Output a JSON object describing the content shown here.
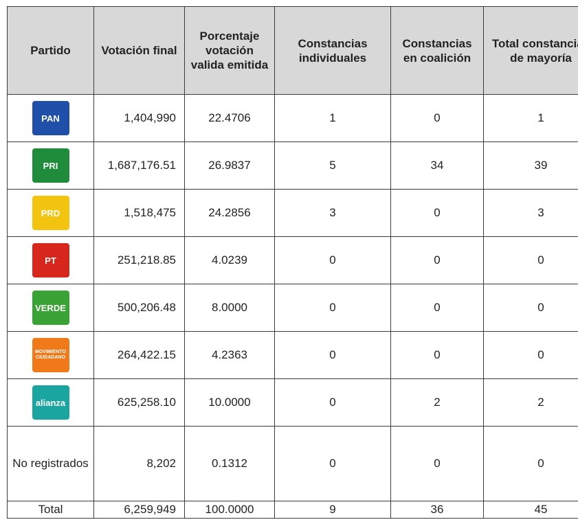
{
  "table": {
    "header": [
      "Partido",
      "Votación final",
      "Porcentaje votación valida emitida",
      "Constancias individuales",
      "Constancias en coalición",
      "Total constancias de mayoría"
    ],
    "rows": [
      {
        "logo": "PAN",
        "color": "#1f4fa8",
        "cells": [
          "1,404,990",
          "22.4706",
          "1",
          "0",
          "1"
        ]
      },
      {
        "logo": "PRI",
        "color": "#1e8c3a",
        "cells": [
          "1,687,176.51",
          "26.9837",
          "5",
          "34",
          "39"
        ]
      },
      {
        "logo": "PRD",
        "color": "#f2c40f",
        "cells": [
          "1,518,475",
          "24.2856",
          "3",
          "0",
          "3"
        ]
      },
      {
        "logo": "PT",
        "color": "#d7261c",
        "cells": [
          "251,218.85",
          "4.0239",
          "0",
          "0",
          "0"
        ]
      },
      {
        "logo": "VERDE",
        "color": "#3aa335",
        "cells": [
          "500,206.48",
          "8.0000",
          "0",
          "0",
          "0"
        ]
      },
      {
        "logo": "MOVIMIENTO CIUDADANO",
        "color": "#f07a1a",
        "cells": [
          "264,422.15",
          "4.2363",
          "0",
          "0",
          "0"
        ]
      },
      {
        "logo": "alianza",
        "color": "#1aa5a0",
        "cells": [
          "625,258.10",
          "10.0000",
          "0",
          "2",
          "2"
        ]
      },
      {
        "label": "No registrados",
        "cells": [
          "8,202",
          "0.1312",
          "0",
          "0",
          "0"
        ]
      },
      {
        "label": "Total",
        "cells": [
          "6,259,949",
          "100.0000",
          "9",
          "36",
          "45"
        ]
      }
    ]
  }
}
